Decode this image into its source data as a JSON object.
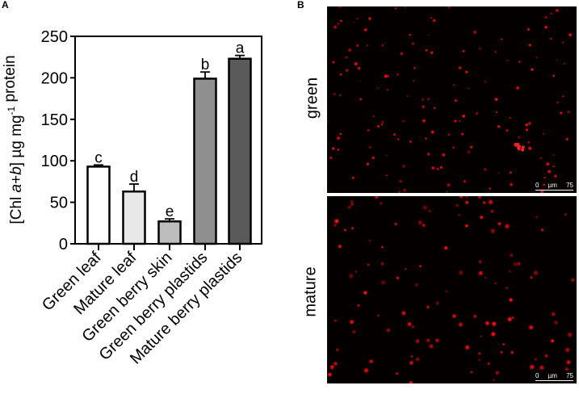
{
  "panels": {
    "a_label": "A",
    "b_label": "B"
  },
  "chart_data": {
    "type": "bar",
    "title": "",
    "xlabel": "",
    "ylabel": "[Chl a+b] µg mg-1 protein",
    "ylabel_parts": {
      "open": "[Chl ",
      "italic_a": "a",
      "plus": "+",
      "italic_b": "b",
      "close": "] µg mg",
      "sup": "-1",
      "tail": " protein"
    },
    "ylim": [
      0,
      250
    ],
    "yticks": [
      0,
      50,
      100,
      150,
      200,
      250
    ],
    "grid": false,
    "legend": null,
    "categories": [
      "Green leaf",
      "Mature leaf",
      "Green berry skin",
      "Green berry plastids",
      "Mature berry plastids"
    ],
    "values": [
      93,
      63,
      27,
      199,
      223
    ],
    "errors": [
      2,
      9,
      3,
      8,
      4
    ],
    "significance_letters": [
      "c",
      "d",
      "e",
      "b",
      "a"
    ],
    "bar_colors": [
      "#ffffff",
      "#e8e8e8",
      "#bdbdbd",
      "#8f8f8f",
      "#5a5a5a"
    ]
  },
  "micrographs": [
    {
      "label": "green",
      "scale_bar": {
        "start": "0",
        "unit": "µm",
        "end": "75"
      }
    },
    {
      "label": "mature",
      "scale_bar": {
        "start": "0",
        "unit": "µm",
        "end": "75"
      }
    }
  ]
}
